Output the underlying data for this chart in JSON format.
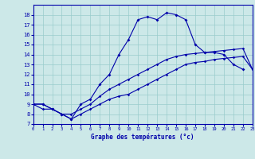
{
  "xlabel": "Graphe des températures (°c)",
  "bg_color": "#cce8e8",
  "line_color": "#0000aa",
  "grid_color": "#99cccc",
  "hours": [
    0,
    1,
    2,
    3,
    4,
    5,
    6,
    7,
    8,
    9,
    10,
    11,
    12,
    13,
    14,
    15,
    16,
    17,
    18,
    19,
    20,
    21,
    22,
    23
  ],
  "temp_main": [
    9,
    9,
    8.5,
    8,
    7.5,
    9,
    9.5,
    11,
    12,
    14,
    15.5,
    17.5,
    17.8,
    17.5,
    18.2,
    18,
    17.5,
    15,
    14.2,
    14.2,
    14,
    13,
    12.5,
    null
  ],
  "temp_low": [
    9,
    8.5,
    8.5,
    8,
    7.5,
    8,
    8.5,
    9,
    9.5,
    9.8,
    10,
    10.5,
    11,
    11.5,
    12,
    12.5,
    13,
    13.2,
    13.3,
    13.5,
    13.6,
    13.7,
    13.8,
    12.5
  ],
  "temp_high": [
    9,
    9,
    8.5,
    8,
    8,
    8.5,
    9,
    9.8,
    10.5,
    11,
    11.5,
    12,
    12.5,
    13,
    13.5,
    13.8,
    14,
    14.1,
    14.2,
    14.3,
    14.4,
    14.5,
    14.6,
    12.5
  ],
  "ylim": [
    7,
    19
  ],
  "xlim": [
    0,
    23
  ],
  "yticks": [
    7,
    8,
    9,
    10,
    11,
    12,
    13,
    14,
    15,
    16,
    17,
    18
  ],
  "xticks": [
    0,
    1,
    2,
    3,
    4,
    5,
    6,
    7,
    8,
    9,
    10,
    11,
    12,
    13,
    14,
    15,
    16,
    17,
    18,
    19,
    20,
    21,
    22,
    23
  ]
}
